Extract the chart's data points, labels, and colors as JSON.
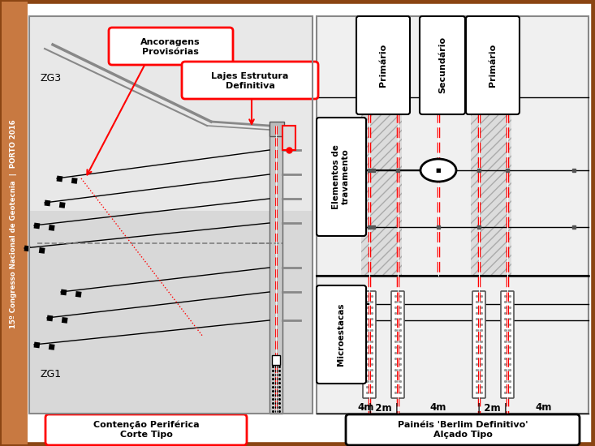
{
  "bg_color": "#ffffff",
  "border_color": "#8B4513",
  "sidebar_color": "#c87941",
  "sidebar_text": "15º Congresso Nacional de Geotecnia  |  PORTO 2016",
  "label_ancoragen": "Ancoragens\nProvisórias",
  "label_lajes": "Lajes Estrutura\nDefinitiva",
  "label_contencao": "Contenção Periférica\nCorte Tipo",
  "label_paineis": "Painéis 'Berlim Definitivo'\nAlçado Tipo",
  "label_zg3": "ZG3",
  "label_zg1": "ZG1",
  "label_primario1": "Primário",
  "label_secundario": "Secundário",
  "label_primario2": "Primário",
  "label_elementos": "Elementos de\ntravamento",
  "label_microestacas": "Microestacas"
}
